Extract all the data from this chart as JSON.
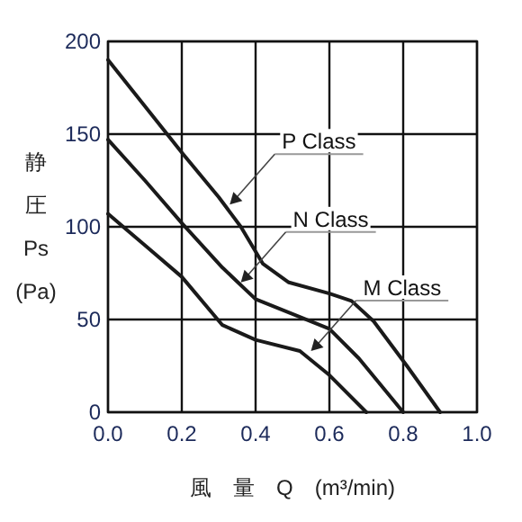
{
  "chart_data": {
    "type": "line",
    "xlabel": "風 量 Q (m³/min)",
    "ylabel": "静圧 Ps (Pa)",
    "xlim": [
      0,
      1
    ],
    "ylim": [
      0,
      200
    ],
    "xticks": [
      {
        "value": 0,
        "label": "0.0"
      },
      {
        "value": 0.2,
        "label": "0.2"
      },
      {
        "value": 0.4,
        "label": "0.4"
      },
      {
        "value": 0.6,
        "label": "0.6"
      },
      {
        "value": 0.8,
        "label": "0.8"
      },
      {
        "value": 1,
        "label": "1.0"
      }
    ],
    "yticks": [
      0,
      50,
      100,
      150,
      200
    ],
    "grid": true,
    "series": [
      {
        "color": "#1a1a1a",
        "x": [
          0,
          0.1,
          0.2,
          0.3,
          0.36,
          0.42,
          0.49,
          0.6,
          0.66,
          0.72,
          0.81,
          0.9
        ],
        "values": [
          190,
          165,
          140,
          116,
          100,
          80,
          70,
          64,
          60,
          49,
          25,
          0
        ]
      },
      {
        "color": "#1a1a1a",
        "x": [
          0,
          0.1,
          0.2,
          0.31,
          0.4,
          0.5,
          0.6,
          0.68,
          0.8
        ],
        "values": [
          147,
          125,
          102,
          78,
          61,
          53,
          45,
          29,
          0
        ]
      },
      {
        "color": "#1a1a1a",
        "x": [
          0,
          0.1,
          0.2,
          0.31,
          0.4,
          0.52,
          0.6,
          0.7
        ],
        "values": [
          107,
          90,
          73,
          47,
          39,
          33,
          20,
          0
        ]
      }
    ],
    "annotations": [
      {
        "text": "P Class",
        "x": 0.33,
        "y": 112
      },
      {
        "text": "N Class",
        "x": 0.36,
        "y": 70
      },
      {
        "text": "M Class",
        "x": 0.55,
        "y": 33
      }
    ]
  }
}
